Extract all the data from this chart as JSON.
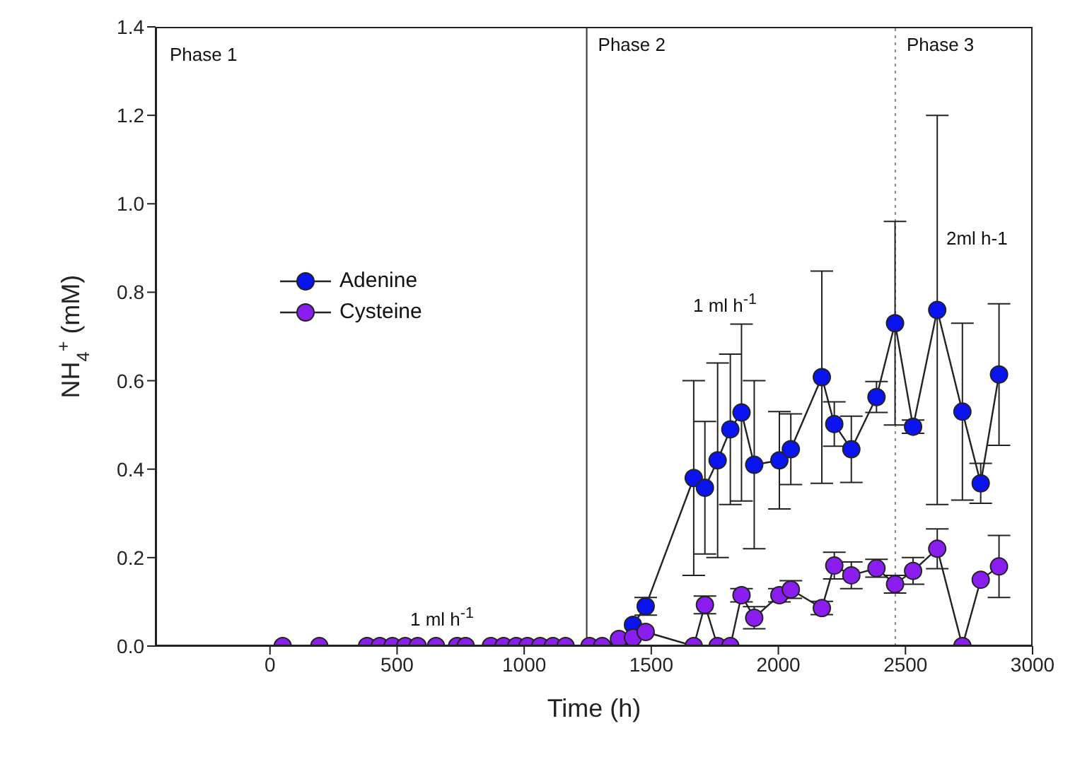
{
  "chart_data": {
    "type": "line",
    "xlabel": "Time (h)",
    "ylabel": "NH$_{4}$$^{+}$ (mM)",
    "xlim": [
      -450,
      3000
    ],
    "xticks": [
      0,
      500,
      1000,
      1500,
      2000,
      2500,
      3000
    ],
    "ylim": [
      0,
      1.4
    ],
    "yticks": [
      {
        "value": 0,
        "label": "0.0"
      },
      0.2,
      0.4,
      0.6,
      0.8,
      {
        "value": 1,
        "label": "1.0"
      },
      1.2,
      1.4
    ],
    "legend": "left",
    "marker": "circle",
    "line_style": "solid",
    "series": [
      {
        "name": "Adenine",
        "color": "#0a14f0",
        "x": [
          1373,
          1428,
          1478,
          1667,
          1711,
          1761,
          1811,
          1855,
          1905,
          2004,
          2049,
          2171,
          2220,
          2287,
          2386,
          2459,
          2530,
          2625,
          2724,
          2796,
          2868
        ],
        "values": [
          0,
          0.048,
          0.09,
          0.38,
          0.358,
          0.42,
          0.49,
          0.528,
          0.41,
          0.42,
          0.445,
          0.608,
          0.502,
          0.445,
          0.563,
          0.73,
          0.496,
          0.76,
          0.53,
          0.368,
          0.614
        ],
        "errors": [
          null,
          null,
          0.02,
          0.22,
          0.15,
          0.22,
          0.17,
          0.2,
          0.19,
          0.11,
          0.08,
          0.24,
          0.05,
          0.075,
          0.035,
          0.23,
          0.015,
          0.44,
          0.2,
          0.045,
          0.16
        ]
      },
      {
        "name": "Cysteine",
        "color": "#8a1ef0",
        "x": [
          50,
          194,
          382,
          432,
          482,
          532,
          581,
          653,
          736,
          770,
          869,
          919,
          969,
          1013,
          1063,
          1113,
          1163,
          1257,
          1307,
          1373,
          1428,
          1478,
          1667,
          1711,
          1761,
          1811,
          1855,
          1905,
          2004,
          2049,
          2171,
          2220,
          2287,
          2386,
          2459,
          2530,
          2625,
          2724,
          2796,
          2868
        ],
        "values": [
          0,
          0,
          0,
          0,
          0,
          0,
          0,
          0,
          0,
          0,
          0,
          0,
          0,
          0,
          0,
          0,
          0,
          0,
          0,
          0.016,
          0.019,
          0.032,
          0,
          0.093,
          0,
          0,
          0.115,
          0.064,
          0.115,
          0.128,
          0.086,
          0.182,
          0.16,
          0.176,
          0.14,
          0.17,
          0.22,
          0,
          0.15,
          0.18
        ],
        "errors": [
          null,
          null,
          null,
          null,
          null,
          null,
          null,
          null,
          null,
          null,
          null,
          null,
          null,
          null,
          null,
          null,
          null,
          null,
          null,
          null,
          null,
          null,
          null,
          0.02,
          null,
          null,
          0.015,
          0.025,
          0.015,
          0.02,
          0.015,
          0.03,
          0.03,
          0.02,
          0.02,
          0.03,
          0.045,
          null,
          null,
          0.07
        ]
      }
    ],
    "ref_lines": [
      {
        "axis": "x",
        "value": 1246,
        "label": "Phase 2",
        "line_style": "solid",
        "color": "#333333"
      },
      {
        "axis": "x",
        "value": 2460,
        "label": "Phase 3",
        "line_style": "dotted",
        "color": "#888888"
      }
    ],
    "annotations": [
      "Phase 1",
      "1 ml h$^{-1}$",
      "1 ml h$^{-1}$",
      "2ml h-1"
    ]
  }
}
